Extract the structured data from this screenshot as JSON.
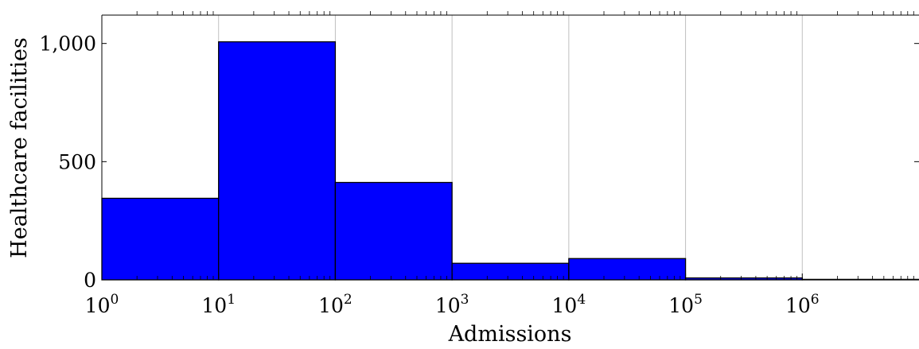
{
  "chart_data": {
    "type": "bar",
    "xlabel": "Admissions",
    "ylabel": "Healthcare facilities",
    "x_scale": "log",
    "xlim": [
      1,
      10000000
    ],
    "ylim": [
      0,
      1120
    ],
    "grid": {
      "x": true,
      "y": false
    },
    "bins": [
      {
        "from": 1,
        "to": 10,
        "value": 345
      },
      {
        "from": 10,
        "to": 100,
        "value": 1007
      },
      {
        "from": 100,
        "to": 1000,
        "value": 412
      },
      {
        "from": 1000,
        "to": 10000,
        "value": 70
      },
      {
        "from": 10000,
        "to": 100000,
        "value": 90
      },
      {
        "from": 100000,
        "to": 1000000,
        "value": 8
      },
      {
        "from": 1000000,
        "to": 10000000,
        "value": 2
      }
    ],
    "x_ticks": [
      {
        "value": 1,
        "base": "10",
        "exp": "0"
      },
      {
        "value": 10,
        "base": "10",
        "exp": "1"
      },
      {
        "value": 100,
        "base": "10",
        "exp": "2"
      },
      {
        "value": 1000,
        "base": "10",
        "exp": "3"
      },
      {
        "value": 10000,
        "base": "10",
        "exp": "4"
      },
      {
        "value": 100000,
        "base": "10",
        "exp": "5"
      },
      {
        "value": 1000000,
        "base": "10",
        "exp": "6"
      }
    ],
    "y_ticks": [
      {
        "value": 0,
        "label": "0"
      },
      {
        "value": 500,
        "label": "500"
      },
      {
        "value": 1000,
        "label": "1,000"
      }
    ],
    "bar_color": "#0000ff",
    "edge_color": "#000000",
    "grid_color": "#c0c0c0"
  }
}
